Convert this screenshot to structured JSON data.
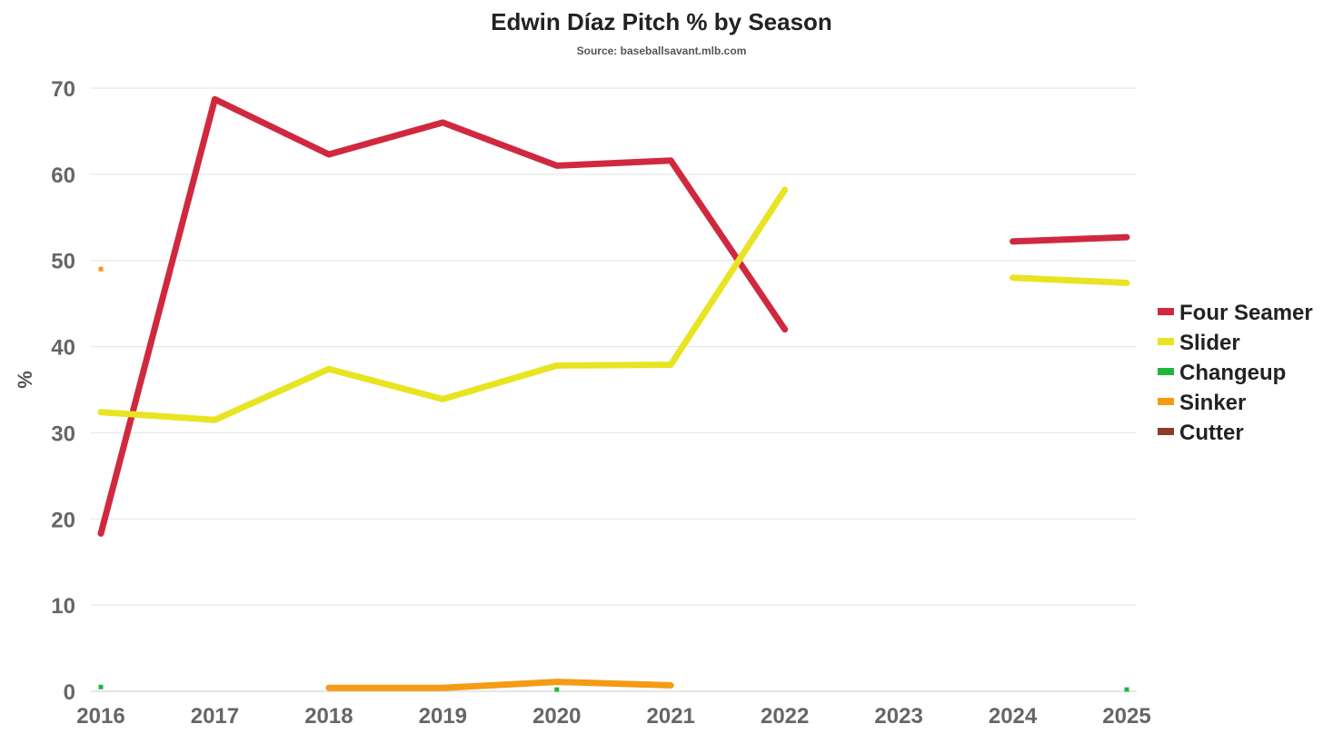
{
  "chart_data": {
    "type": "line",
    "title": "Edwin Díaz Pitch % by Season",
    "subtitle": "Source: baseballsavant.mlb.com",
    "xlabel": "",
    "ylabel": "%",
    "x": [
      2016,
      2017,
      2018,
      2019,
      2020,
      2021,
      2022,
      2023,
      2024,
      2025
    ],
    "ylim": [
      0,
      70
    ],
    "yticks": [
      0,
      10,
      20,
      30,
      40,
      50,
      60,
      70
    ],
    "grid": true,
    "legend_position": "right",
    "series": [
      {
        "name": "Four Seamer",
        "color": "#d0293f",
        "values": [
          18.3,
          68.7,
          62.3,
          66.0,
          61.0,
          61.6,
          42.0,
          null,
          52.2,
          52.7
        ]
      },
      {
        "name": "Slider",
        "color": "#e8e421",
        "values": [
          32.4,
          31.5,
          37.4,
          33.9,
          37.8,
          37.9,
          58.2,
          null,
          48.0,
          47.4
        ]
      },
      {
        "name": "Changeup",
        "color": "#21b53c",
        "values": [
          0.5,
          null,
          null,
          null,
          0.2,
          null,
          null,
          null,
          null,
          0.2
        ]
      },
      {
        "name": "Sinker",
        "color": "#f59b14",
        "values": [
          49.0,
          null,
          0.4,
          0.4,
          1.1,
          0.7,
          null,
          null,
          null,
          null
        ]
      },
      {
        "name": "Cutter",
        "color": "#8c3b26",
        "values": [
          null,
          null,
          null,
          null,
          null,
          null,
          null,
          null,
          null,
          null
        ]
      }
    ]
  }
}
